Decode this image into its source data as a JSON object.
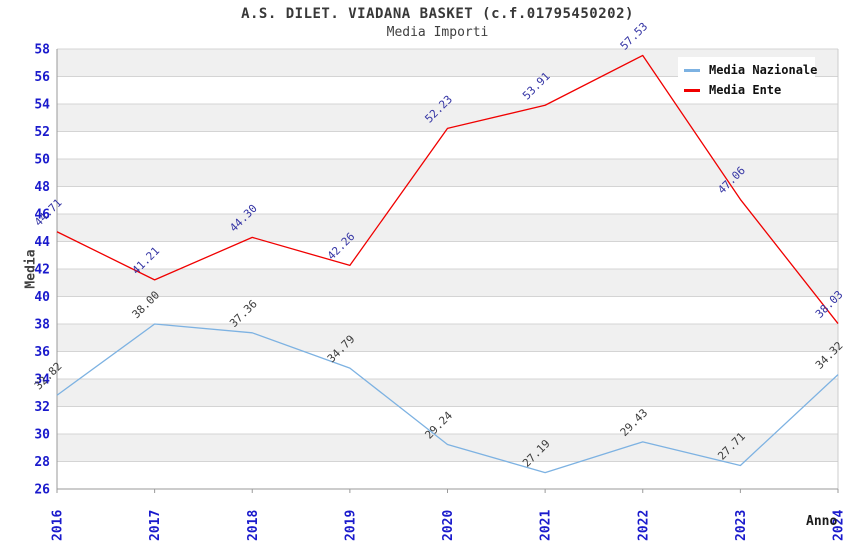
{
  "chart_data": {
    "type": "line",
    "title": "A.S. DILET. VIADANA BASKET (c.f.01795450202)",
    "subtitle": "Media Importi",
    "xlabel": "Anno",
    "ylabel": "Media",
    "x": [
      "2016",
      "2017",
      "2018",
      "2019",
      "2020",
      "2021",
      "2022",
      "2023",
      "2024"
    ],
    "ylim": [
      26,
      58
    ],
    "ytick_step": 2,
    "grid": "horizontal-bands",
    "legend_position": "top-right",
    "series": [
      {
        "name": "Media Nazionale",
        "color": "#7db2e2",
        "label_color": "#3c3c3c",
        "values": [
          32.82,
          38.0,
          37.36,
          34.79,
          29.24,
          27.19,
          29.43,
          27.71,
          34.32
        ]
      },
      {
        "name": "Media Ente",
        "color": "#f00000",
        "label_color": "#3434a4",
        "values": [
          44.71,
          41.21,
          44.3,
          42.26,
          52.23,
          53.91,
          57.53,
          47.06,
          38.03
        ]
      }
    ],
    "colors": {
      "axis_tick_label": "#1a1acc",
      "band_gray": "#f0f0f0",
      "band_white": "#ffffff",
      "gridline": "#d4d4d4",
      "axis_line": "#9a9a9a",
      "frame_light": "#cccccc"
    }
  }
}
